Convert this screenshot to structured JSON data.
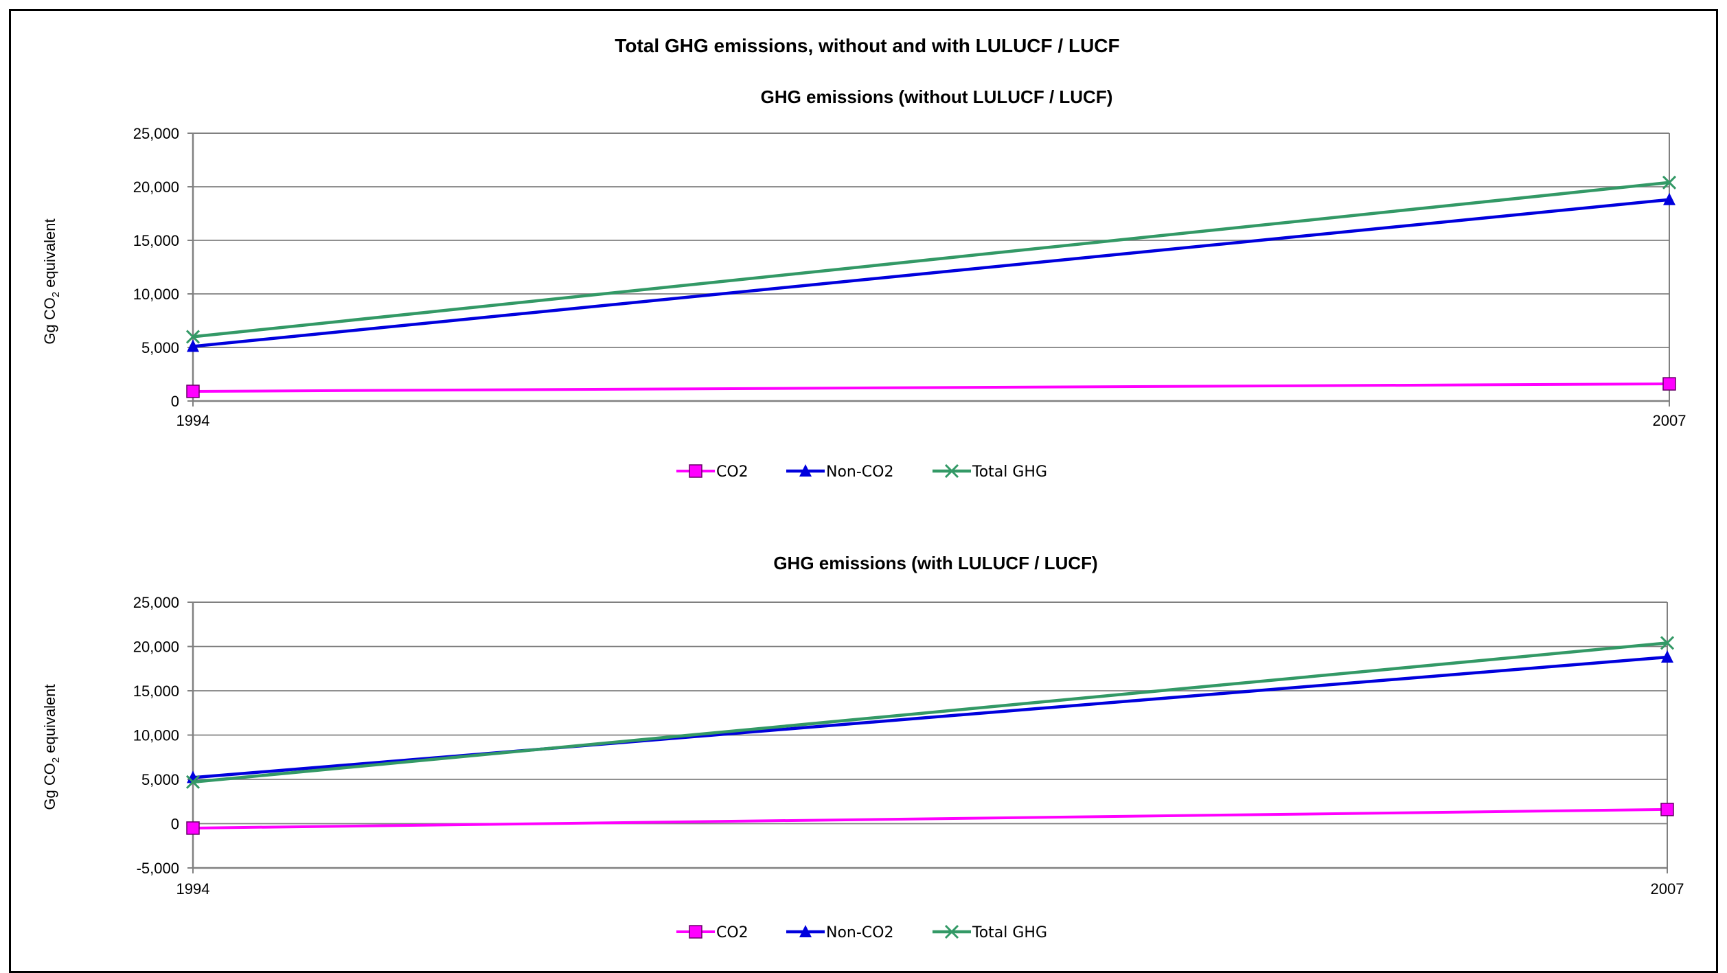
{
  "main_title": "Total GHG emissions, without and with LULUCF / LUCF",
  "colors": {
    "CO2": "#ff00ff",
    "Non-CO2": "#0000dd",
    "Total GHG": "#339966",
    "grid": "#808080",
    "axis": "#808080"
  },
  "chart_data": [
    {
      "type": "line",
      "title": "GHG emissions (without LULUCF / LUCF)",
      "ylabel_main": "Gg CO",
      "ylabel_sub": "2",
      "ylabel_tail": " equivalent",
      "x": [
        "1994",
        "2007"
      ],
      "ylim": [
        0,
        25000
      ],
      "yticks": [
        0,
        5000,
        10000,
        15000,
        20000,
        25000
      ],
      "ytick_labels": [
        "0",
        "5,000",
        "10,000",
        "15,000",
        "20,000",
        "25,000"
      ],
      "grid": true,
      "legend_position": "bottom",
      "series": [
        {
          "name": "CO2",
          "marker": "square",
          "values": [
            900,
            1600
          ]
        },
        {
          "name": "Non-CO2",
          "marker": "triangle",
          "values": [
            5100,
            18800
          ]
        },
        {
          "name": "Total GHG",
          "marker": "x",
          "values": [
            6000,
            20400
          ]
        }
      ]
    },
    {
      "type": "line",
      "title": "GHG emissions (with LULUCF / LUCF)",
      "ylabel_main": "Gg CO",
      "ylabel_sub": "2",
      "ylabel_tail": " equivalent",
      "x": [
        "1994",
        "2007"
      ],
      "ylim": [
        -5000,
        25000
      ],
      "yticks": [
        -5000,
        0,
        5000,
        10000,
        15000,
        20000,
        25000
      ],
      "ytick_labels": [
        "-5,000",
        "0",
        "5,000",
        "10,000",
        "15,000",
        "20,000",
        "25,000"
      ],
      "grid": true,
      "legend_position": "bottom",
      "series": [
        {
          "name": "CO2",
          "marker": "square",
          "values": [
            -500,
            1600
          ]
        },
        {
          "name": "Non-CO2",
          "marker": "triangle",
          "values": [
            5200,
            18800
          ]
        },
        {
          "name": "Total GHG",
          "marker": "x",
          "values": [
            4700,
            20400
          ]
        }
      ]
    }
  ]
}
